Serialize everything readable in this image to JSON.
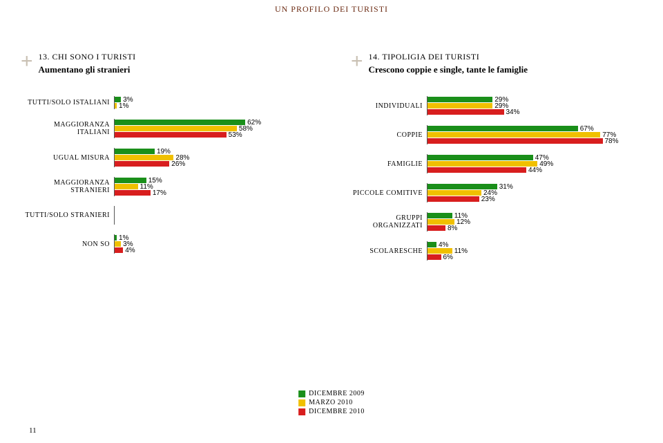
{
  "pageTitle": "UN PROFILO DEI TURISTI",
  "pageNumber": "11",
  "colors": {
    "series": [
      "#1a8f1a",
      "#f0c000",
      "#d81e1e"
    ],
    "plusIcon": "#c9c0b3",
    "titleColor": "#6b2a12"
  },
  "legend": [
    {
      "label": "DICEMBRE 2009",
      "color": "#1a8f1a"
    },
    {
      "label": "MARZO 2010",
      "color": "#f0c000"
    },
    {
      "label": "DICEMBRE 2010",
      "color": "#d81e1e"
    }
  ],
  "leftChart": {
    "header": {
      "num": "13. CHI SONO I TURISTI",
      "sub": "Aumentano gli stranieri"
    },
    "maxValue": 100,
    "barWidthPx": 305,
    "rows": [
      {
        "label": "TUTTI/SOLO ISTALIANI",
        "values": [
          3,
          1,
          null
        ],
        "labels": [
          "3%",
          "1%",
          ""
        ]
      },
      {
        "label": "MAGGIORANZA ITALIANI",
        "values": [
          62,
          58,
          53
        ],
        "labels": [
          "62%",
          "58%",
          "53%"
        ]
      },
      {
        "label": "UGUAL MISURA",
        "values": [
          19,
          28,
          26
        ],
        "labels": [
          "19%",
          "28%",
          "26%"
        ]
      },
      {
        "label": "MAGGIORANZA STRANIERI",
        "values": [
          15,
          11,
          17
        ],
        "labels": [
          "15%",
          "11%",
          "17%"
        ]
      },
      {
        "label": "TUTTI/SOLO STRANIERI",
        "values": [
          null,
          null,
          null
        ],
        "labels": [
          "",
          "",
          ""
        ]
      },
      {
        "label": "NON SO",
        "values": [
          1,
          3,
          4
        ],
        "labels": [
          "1%",
          "3%",
          "4%"
        ]
      }
    ]
  },
  "rightChart": {
    "header": {
      "num": "14. TIPOLIGIA DEI TURISTI",
      "sub": "Crescono coppie e single, tante le famiglie"
    },
    "maxValue": 100,
    "barWidthPx": 325,
    "rows": [
      {
        "label": "INDIVIDUALI",
        "values": [
          29,
          29,
          34
        ],
        "labels": [
          "29%",
          "29%",
          "34%"
        ]
      },
      {
        "label": "COPPIE",
        "values": [
          67,
          77,
          78
        ],
        "labels": [
          "67%",
          "77%",
          "78%"
        ]
      },
      {
        "label": "FAMIGLIE",
        "values": [
          47,
          49,
          44
        ],
        "labels": [
          "47%",
          "49%",
          "44%"
        ]
      },
      {
        "label": "PICCOLE COMITIVE",
        "values": [
          31,
          24,
          23
        ],
        "labels": [
          "31%",
          "24%",
          "23%"
        ]
      },
      {
        "label": "GRUPPI ORGANIZZATI",
        "values": [
          11,
          12,
          8
        ],
        "labels": [
          "11%",
          "12%",
          "8%"
        ]
      },
      {
        "label": "SCOLARESCHE",
        "values": [
          4,
          11,
          6
        ],
        "labels": [
          "4%",
          "11%",
          "6%"
        ]
      }
    ]
  }
}
